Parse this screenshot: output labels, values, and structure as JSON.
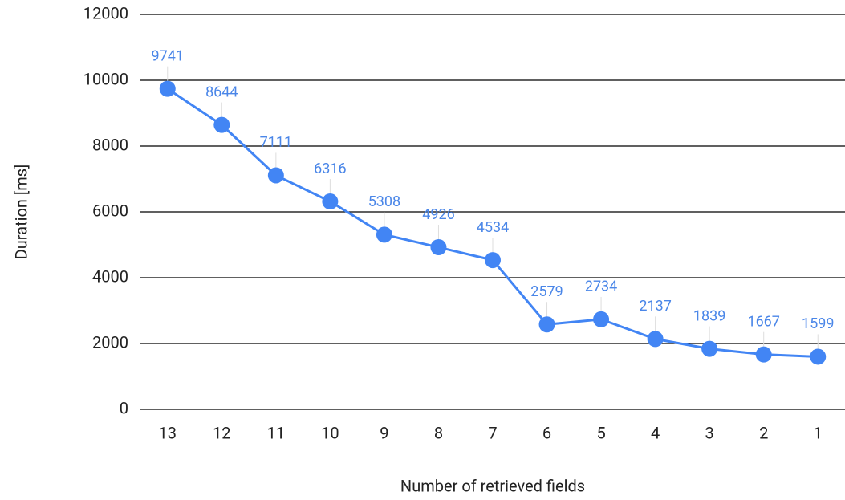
{
  "chart_data": {
    "type": "line",
    "x_label": "Number of retrieved fields",
    "y_label": "Duration [ms]",
    "categories": [
      "13",
      "12",
      "11",
      "10",
      "9",
      "8",
      "7",
      "6",
      "5",
      "4",
      "3",
      "2",
      "1"
    ],
    "series": [
      {
        "name": "Duration",
        "color": "#4285f4",
        "values": [
          9741,
          8644,
          7111,
          6316,
          5308,
          4926,
          4534,
          2579,
          2734,
          2137,
          1839,
          1667,
          1599
        ]
      }
    ],
    "ylim": [
      0,
      12000
    ],
    "yticks": [
      0,
      2000,
      4000,
      6000,
      8000,
      10000,
      12000
    ],
    "grid": true
  }
}
